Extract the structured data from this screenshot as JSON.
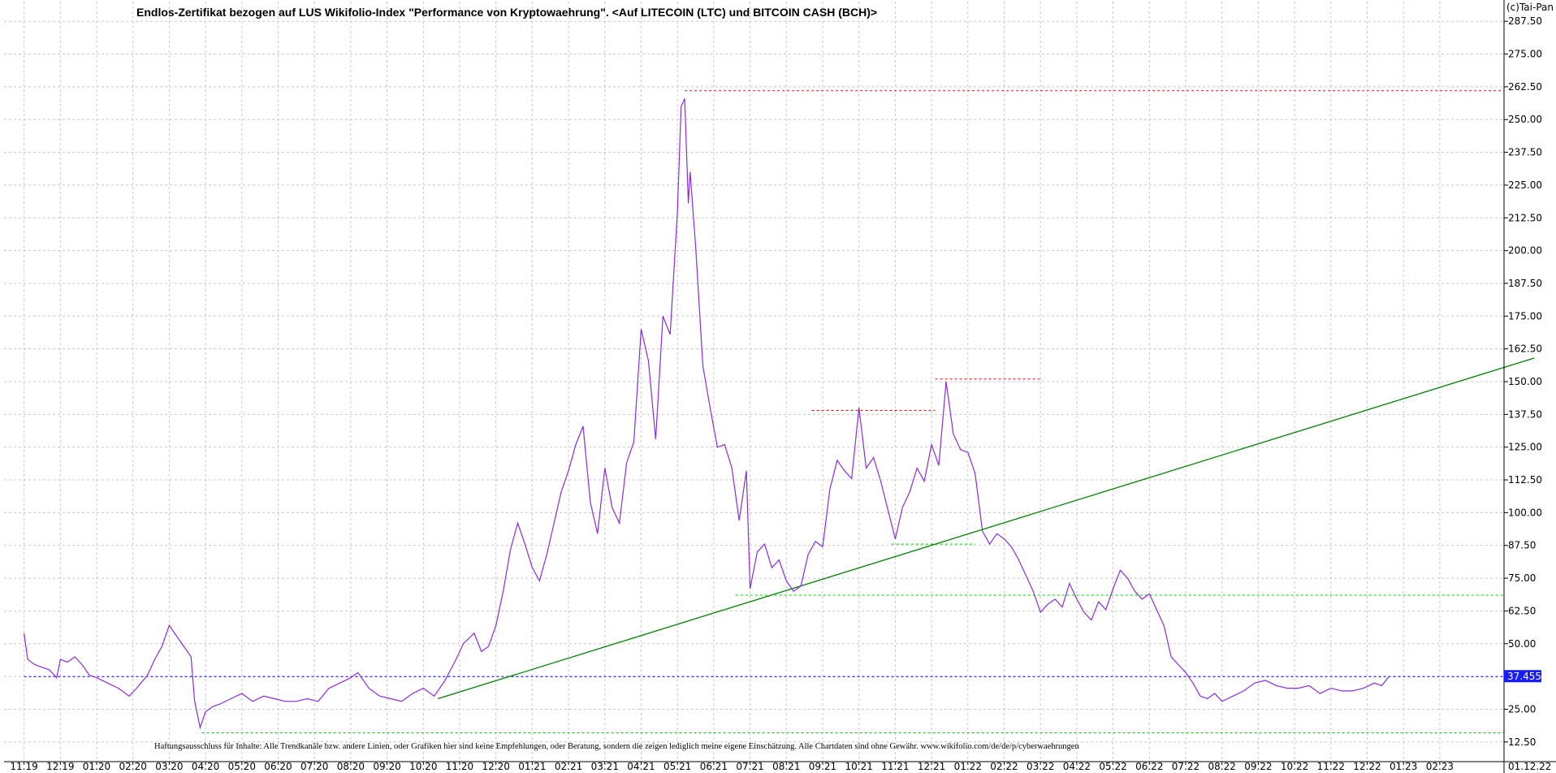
{
  "title": "Endlos-Zertifikat bezogen auf LUS Wikifolio-Index \"Performance von Kryptowaehrung\". <Auf LITECOIN (LTC) und BITCOIN CASH (BCH)>",
  "copyright": "(c)Tai-Pan",
  "disclaimer": "Haftungsausschluss für Inhalte: Alle Trendkanäle bzw. andere Linien, oder Grafiken hier sind keine Empfehlungen, oder Beratung, sondern die zeigen lediglich meine eigene Einschätzung. Alle Chartdaten sind ohne Gewähr. www.wikifolio.com/de/de/p/cyberwaehrungen",
  "last_value_label": "37.455",
  "colors": {
    "price": "#8a2be2",
    "trend": "#008000",
    "resistance": "#ff0000",
    "support": "#00cc00",
    "last_line": "#0000ff",
    "last_box": "#1a1aff",
    "grid": "#c8c8c8"
  },
  "chart_data": {
    "type": "line",
    "ylim": [
      5,
      295
    ],
    "y_ticks": [
      "12.50",
      "25.00",
      "37.50",
      "50.00",
      "62.50",
      "75.00",
      "87.50",
      "100.00",
      "112.50",
      "125.00",
      "137.50",
      "150.00",
      "162.50",
      "175.00",
      "187.50",
      "200.00",
      "212.50",
      "225.00",
      "237.50",
      "250.00",
      "262.50",
      "275.00",
      "287.50"
    ],
    "x_ticks": [
      "11.19",
      "12.19",
      "01.20",
      "02.20",
      "03.20",
      "04.20",
      "05.20",
      "06.20",
      "07.20",
      "08.20",
      "09.20",
      "10.20",
      "11.20",
      "12.20",
      "01.21",
      "02.21",
      "03.21",
      "04.21",
      "05.21",
      "06.21",
      "07.21",
      "08.21",
      "09.21",
      "10.21",
      "11.21",
      "12.21",
      "01.22",
      "02.22",
      "03.22",
      "04.22",
      "05.22",
      "06.22",
      "07.22",
      "08.22",
      "09.22",
      "10.22",
      "11.22",
      "12.22",
      "01.23",
      "02.23",
      "01.12.22"
    ],
    "x_ticks_note": "x values are month index; 0 = 11.19",
    "series": [
      {
        "values": [
          [
            0.0,
            54
          ],
          [
            0.1,
            44
          ],
          [
            0.3,
            42
          ],
          [
            0.5,
            41
          ],
          [
            0.7,
            40
          ],
          [
            0.9,
            37
          ],
          [
            1.0,
            44
          ],
          [
            1.2,
            43
          ],
          [
            1.4,
            45
          ],
          [
            1.6,
            42
          ],
          [
            1.8,
            38
          ],
          [
            2.0,
            37
          ],
          [
            2.3,
            35
          ],
          [
            2.6,
            33
          ],
          [
            2.9,
            30
          ],
          [
            3.1,
            33
          ],
          [
            3.4,
            38
          ],
          [
            3.6,
            44
          ],
          [
            3.8,
            49
          ],
          [
            4.0,
            57
          ],
          [
            4.2,
            53
          ],
          [
            4.4,
            49
          ],
          [
            4.6,
            45
          ],
          [
            4.7,
            28
          ],
          [
            4.85,
            18
          ],
          [
            5.0,
            24
          ],
          [
            5.2,
            26
          ],
          [
            5.4,
            27
          ],
          [
            5.7,
            29
          ],
          [
            6.0,
            31
          ],
          [
            6.3,
            28
          ],
          [
            6.6,
            30
          ],
          [
            6.9,
            29
          ],
          [
            7.2,
            28
          ],
          [
            7.5,
            28
          ],
          [
            7.8,
            29
          ],
          [
            8.1,
            28
          ],
          [
            8.4,
            33
          ],
          [
            8.7,
            35
          ],
          [
            9.0,
            37
          ],
          [
            9.2,
            39
          ],
          [
            9.5,
            33
          ],
          [
            9.8,
            30
          ],
          [
            10.1,
            29
          ],
          [
            10.4,
            28
          ],
          [
            10.7,
            31
          ],
          [
            11.0,
            33
          ],
          [
            11.3,
            30
          ],
          [
            11.6,
            36
          ],
          [
            11.9,
            44
          ],
          [
            12.1,
            50
          ],
          [
            12.4,
            54
          ],
          [
            12.6,
            47
          ],
          [
            12.8,
            49
          ],
          [
            13.0,
            57
          ],
          [
            13.2,
            70
          ],
          [
            13.4,
            86
          ],
          [
            13.6,
            96
          ],
          [
            13.8,
            88
          ],
          [
            14.0,
            79
          ],
          [
            14.2,
            74
          ],
          [
            14.4,
            84
          ],
          [
            14.6,
            96
          ],
          [
            14.8,
            108
          ],
          [
            15.0,
            116
          ],
          [
            15.2,
            126
          ],
          [
            15.4,
            133
          ],
          [
            15.6,
            104
          ],
          [
            15.8,
            92
          ],
          [
            16.0,
            117
          ],
          [
            16.2,
            102
          ],
          [
            16.4,
            96
          ],
          [
            16.6,
            119
          ],
          [
            16.8,
            127
          ],
          [
            17.0,
            170
          ],
          [
            17.2,
            158
          ],
          [
            17.4,
            128
          ],
          [
            17.6,
            175
          ],
          [
            17.8,
            168
          ],
          [
            18.0,
            215
          ],
          [
            18.1,
            255
          ],
          [
            18.2,
            258
          ],
          [
            18.3,
            218
          ],
          [
            18.35,
            230
          ],
          [
            18.5,
            202
          ],
          [
            18.7,
            156
          ],
          [
            18.9,
            140
          ],
          [
            19.1,
            125
          ],
          [
            19.3,
            126
          ],
          [
            19.5,
            117
          ],
          [
            19.7,
            97
          ],
          [
            19.9,
            116
          ],
          [
            20.0,
            71
          ],
          [
            20.2,
            85
          ],
          [
            20.4,
            88
          ],
          [
            20.6,
            79
          ],
          [
            20.8,
            82
          ],
          [
            21.0,
            74
          ],
          [
            21.2,
            70
          ],
          [
            21.4,
            72
          ],
          [
            21.6,
            84
          ],
          [
            21.8,
            89
          ],
          [
            22.0,
            87
          ],
          [
            22.2,
            109
          ],
          [
            22.4,
            120
          ],
          [
            22.6,
            116
          ],
          [
            22.8,
            113
          ],
          [
            23.0,
            140
          ],
          [
            23.2,
            117
          ],
          [
            23.4,
            121
          ],
          [
            23.6,
            112
          ],
          [
            23.8,
            101
          ],
          [
            24.0,
            90
          ],
          [
            24.2,
            102
          ],
          [
            24.4,
            108
          ],
          [
            24.6,
            117
          ],
          [
            24.8,
            112
          ],
          [
            25.0,
            126
          ],
          [
            25.2,
            118
          ],
          [
            25.4,
            150
          ],
          [
            25.6,
            130
          ],
          [
            25.8,
            124
          ],
          [
            26.0,
            123
          ],
          [
            26.2,
            115
          ],
          [
            26.4,
            93
          ],
          [
            26.6,
            88
          ],
          [
            26.8,
            92
          ],
          [
            27.0,
            90
          ],
          [
            27.2,
            87
          ],
          [
            27.4,
            82
          ],
          [
            27.6,
            76
          ],
          [
            27.8,
            70
          ],
          [
            28.0,
            62
          ],
          [
            28.2,
            65
          ],
          [
            28.4,
            67
          ],
          [
            28.6,
            64
          ],
          [
            28.8,
            73
          ],
          [
            29.0,
            67
          ],
          [
            29.2,
            62
          ],
          [
            29.4,
            59
          ],
          [
            29.6,
            66
          ],
          [
            29.8,
            63
          ],
          [
            30.0,
            71
          ],
          [
            30.2,
            78
          ],
          [
            30.4,
            75
          ],
          [
            30.6,
            70
          ],
          [
            30.8,
            67
          ],
          [
            31.0,
            69
          ],
          [
            31.2,
            63
          ],
          [
            31.4,
            57
          ],
          [
            31.6,
            45
          ],
          [
            31.8,
            42
          ],
          [
            32.0,
            39
          ],
          [
            32.2,
            35
          ],
          [
            32.4,
            30
          ],
          [
            32.6,
            29
          ],
          [
            32.8,
            31
          ],
          [
            33.0,
            28
          ],
          [
            33.3,
            30
          ],
          [
            33.6,
            32
          ],
          [
            33.9,
            35
          ],
          [
            34.2,
            36
          ],
          [
            34.5,
            34
          ],
          [
            34.8,
            33
          ],
          [
            35.1,
            33
          ],
          [
            35.4,
            34
          ],
          [
            35.7,
            31
          ],
          [
            36.0,
            33
          ],
          [
            36.3,
            32
          ],
          [
            36.6,
            32
          ],
          [
            36.9,
            33
          ],
          [
            37.2,
            35
          ],
          [
            37.4,
            34
          ],
          [
            37.6,
            37.455
          ]
        ]
      }
    ],
    "annotations": [
      {
        "type": "resistance",
        "y": 261,
        "x": [
          18.2,
          41.0
        ]
      },
      {
        "type": "resistance",
        "y": 151,
        "x": [
          25.1,
          28.0
        ]
      },
      {
        "type": "resistance",
        "y": 139,
        "x": [
          21.7,
          25.1
        ]
      },
      {
        "type": "support",
        "y": 88,
        "x": [
          23.9,
          26.2
        ]
      },
      {
        "type": "support",
        "y": 68.5,
        "x": [
          19.6,
          41.0
        ]
      },
      {
        "type": "support",
        "y": 16,
        "x": [
          4.9,
          41.0
        ]
      },
      {
        "type": "last",
        "y": 37.455,
        "x": [
          0,
          41.5
        ]
      },
      {
        "type": "trend",
        "points": [
          [
            11.4,
            29
          ],
          [
            41.6,
            159
          ]
        ]
      }
    ]
  }
}
